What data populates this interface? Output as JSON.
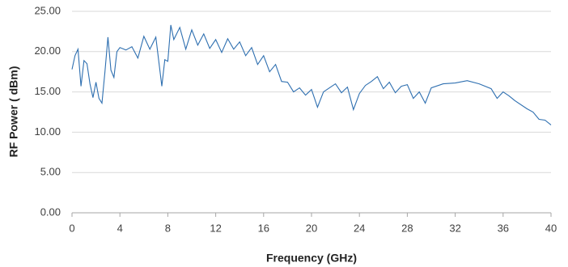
{
  "chart_data": {
    "type": "line",
    "x_label": "Frequency (GHz)",
    "y_label": "RF Power ( dBm)",
    "x": [
      0,
      0.25,
      0.5,
      0.75,
      1.0,
      1.25,
      1.5,
      1.75,
      2.0,
      2.25,
      2.5,
      2.75,
      3.0,
      3.25,
      3.5,
      3.75,
      4.0,
      4.5,
      5.0,
      5.5,
      6.0,
      6.5,
      7.0,
      7.5,
      7.75,
      8.0,
      8.25,
      8.5,
      9.0,
      9.5,
      10.0,
      10.5,
      11.0,
      11.5,
      12.0,
      12.5,
      13.0,
      13.5,
      14.0,
      14.5,
      15.0,
      15.5,
      16.0,
      16.5,
      17.0,
      17.5,
      18.0,
      18.5,
      19.0,
      19.5,
      20.0,
      20.5,
      21.0,
      21.5,
      22.0,
      22.5,
      23.0,
      23.5,
      24.0,
      24.5,
      25.0,
      25.5,
      26.0,
      26.5,
      27.0,
      27.5,
      28.0,
      28.5,
      29.0,
      29.5,
      30.0,
      31.0,
      32.0,
      33.0,
      34.0,
      35.0,
      35.5,
      36.0,
      36.5,
      37.0,
      38.0,
      38.5,
      39.0,
      39.5,
      40.0
    ],
    "series": [
      {
        "color": "#2e6fb0",
        "values": [
          17.8,
          19.5,
          20.3,
          15.7,
          18.9,
          18.5,
          16.0,
          14.3,
          16.2,
          14.2,
          13.6,
          17.5,
          21.8,
          17.7,
          16.8,
          20.0,
          20.5,
          20.2,
          20.6,
          19.2,
          21.9,
          20.3,
          21.8,
          15.7,
          19.0,
          18.8,
          23.3,
          21.5,
          23.0,
          20.3,
          22.7,
          20.8,
          22.2,
          20.4,
          21.5,
          19.9,
          21.6,
          20.3,
          21.2,
          19.5,
          20.5,
          18.4,
          19.5,
          17.5,
          18.4,
          16.3,
          16.2,
          15.0,
          15.5,
          14.6,
          15.3,
          13.1,
          15.0,
          15.5,
          16.0,
          14.9,
          15.6,
          12.8,
          14.8,
          15.8,
          16.3,
          16.9,
          15.4,
          16.2,
          14.9,
          15.7,
          15.9,
          14.2,
          15.0,
          13.6,
          15.5,
          16.0,
          16.1,
          16.4,
          16.0,
          15.4,
          14.2,
          15.0,
          14.5,
          13.9,
          12.9,
          12.5,
          11.6,
          11.5,
          10.9
        ]
      }
    ],
    "xlim": [
      0,
      40
    ],
    "xticks": [
      0,
      4,
      8,
      12,
      16,
      20,
      24,
      28,
      32,
      36,
      40
    ],
    "ylim": [
      0,
      25
    ],
    "yticks": [
      {
        "value": 0,
        "label": "0.00"
      },
      {
        "value": 5,
        "label": "5.00"
      },
      {
        "value": 10,
        "label": "10.00"
      },
      {
        "value": 15,
        "label": "15.00"
      },
      {
        "value": 20,
        "label": "20.00"
      },
      {
        "value": 25,
        "label": "25.00"
      }
    ],
    "grid": true
  }
}
